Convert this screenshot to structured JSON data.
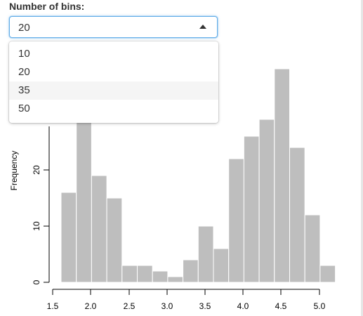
{
  "control": {
    "label": "Number of bins:",
    "selected_value": "20",
    "options": [
      "10",
      "20",
      "35",
      "50"
    ],
    "highlighted_option": "35"
  },
  "chart_data": {
    "type": "bar",
    "bin_width": 0.1,
    "bin_starts": [
      1.6,
      1.7,
      1.8,
      1.9,
      2.0,
      2.1,
      2.2,
      2.3,
      2.4,
      2.5,
      2.6,
      2.7,
      2.8,
      2.9,
      3.0,
      3.1,
      3.2,
      3.3,
      3.4,
      3.5,
      3.6,
      3.7,
      3.8,
      3.9,
      4.0,
      4.1,
      4.2,
      4.3,
      4.4,
      4.5,
      4.6,
      4.7,
      4.8,
      4.9,
      5.0,
      5.1
    ],
    "values": [
      16,
      16,
      37,
      37,
      19,
      19,
      15,
      15,
      3,
      3,
      3,
      3,
      2,
      2,
      1,
      1,
      4,
      4,
      10,
      10,
      6,
      6,
      22,
      22,
      26,
      26,
      29,
      29,
      38,
      38,
      24,
      24,
      12,
      12,
      3,
      3
    ],
    "xlim": [
      1.5,
      5.0
    ],
    "x_ticks": [
      "1.5",
      "2.0",
      "2.5",
      "3.0",
      "3.5",
      "4.0",
      "4.5",
      "5.0"
    ],
    "y_ticks": [
      "0",
      "10",
      "20"
    ],
    "ylabel": "Frequency",
    "bar_color": "#bebebe",
    "bar_border": "#ffffff"
  }
}
